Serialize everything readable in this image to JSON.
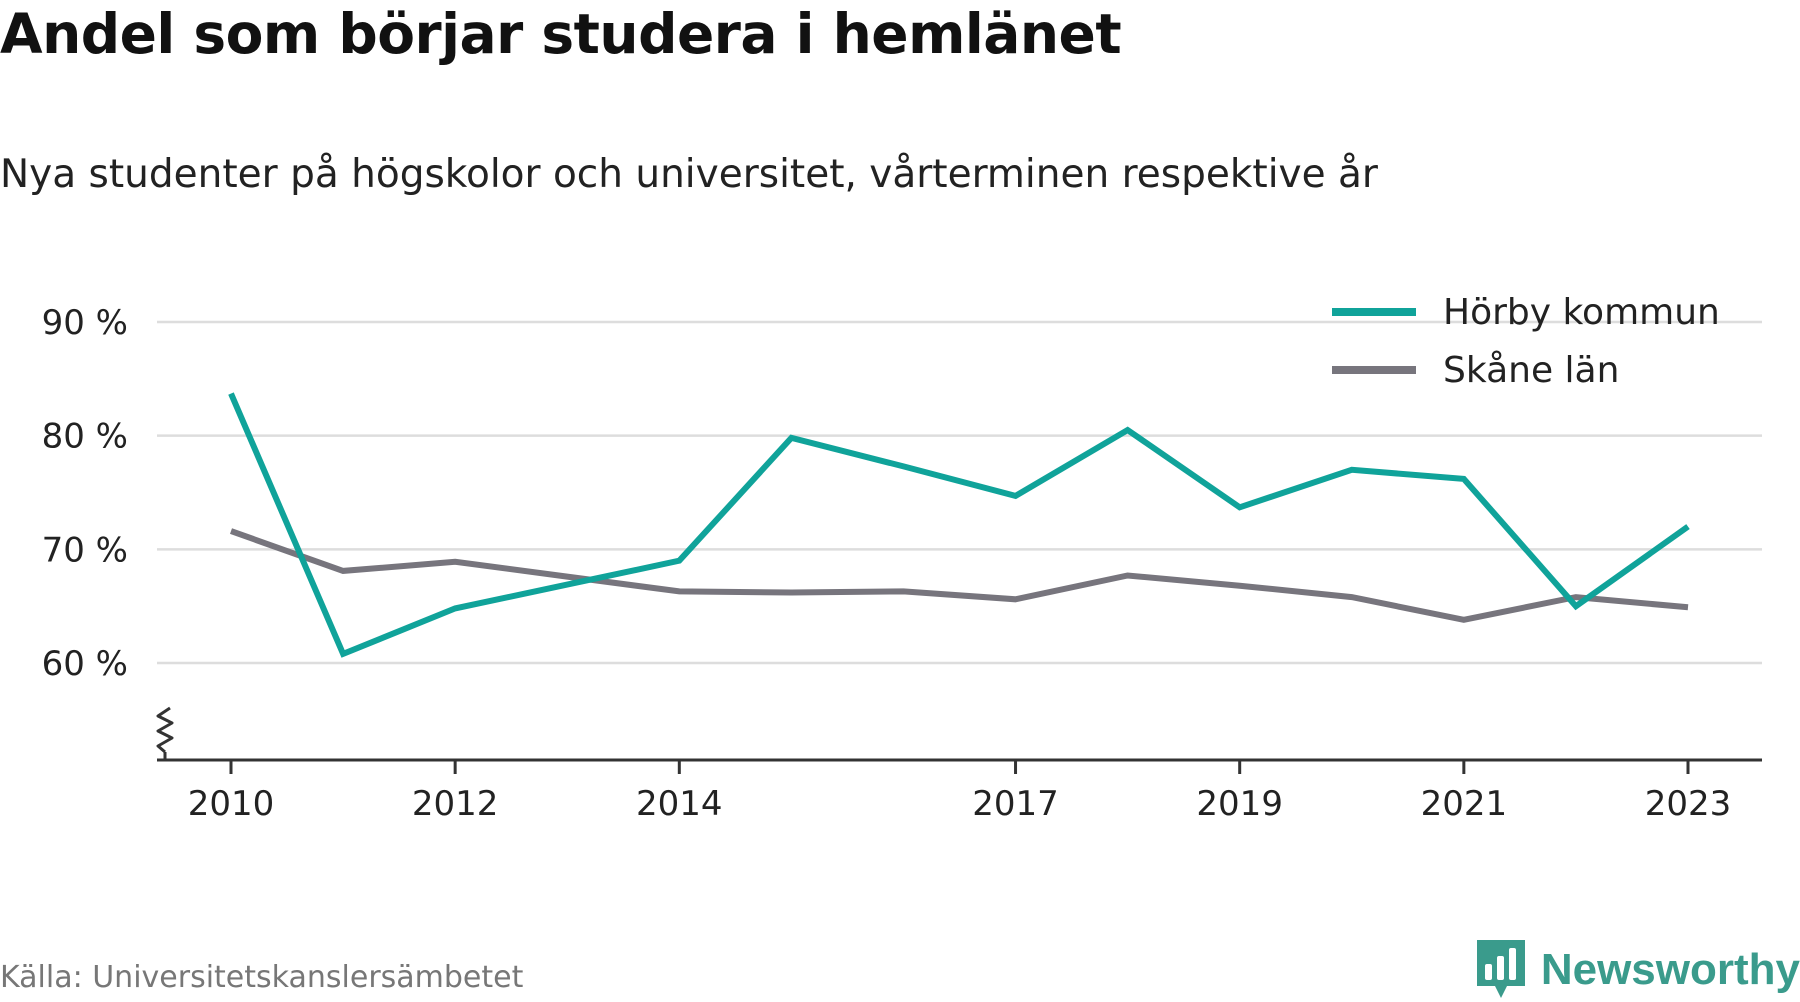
{
  "header": {
    "title": "Andel som börjar studera i hemlänet",
    "subtitle": "Nya studenter på högskolor och universitet, vårterminen respektive år"
  },
  "footer": {
    "source": "Källa: Universitetskanslersämbetet",
    "brand": "Newsworthy",
    "brand_icon": "bar-chart-speech-bubble-icon"
  },
  "colors": {
    "horby": "#10a39a",
    "skane": "#77757d",
    "grid": "#dddddd",
    "axis": "#333333",
    "brand": "#3a9b8c"
  },
  "chart_data": {
    "type": "line",
    "title": "Andel som börjar studera i hemlänet",
    "subtitle": "Nya studenter på högskolor och universitet, vårterminen respektive år",
    "xlabel": "",
    "ylabel": "",
    "x": [
      2010,
      2011,
      2012,
      2013,
      2014,
      2015,
      2016,
      2017,
      2018,
      2019,
      2020,
      2021,
      2022,
      2023
    ],
    "x_ticks": [
      "2010",
      "2012",
      "2014",
      "2017",
      "2019",
      "2021",
      "2023"
    ],
    "y_ticks": [
      "60 %",
      "70 %",
      "80 %",
      "90 %"
    ],
    "ylim": [
      51.5,
      92
    ],
    "y_axis_break": true,
    "grid": "horizontal",
    "legend_position": "top-right",
    "series": [
      {
        "name": "Hörby kommun",
        "color": "#10a39a",
        "values": [
          83.7,
          60.8,
          64.8,
          66.9,
          69.0,
          79.8,
          77.3,
          74.7,
          80.5,
          73.7,
          77.0,
          76.2,
          65.0,
          72.0
        ]
      },
      {
        "name": "Skåne län",
        "color": "#77757d",
        "values": [
          71.6,
          68.1,
          68.9,
          67.6,
          66.3,
          66.2,
          66.3,
          65.6,
          67.7,
          66.8,
          65.8,
          63.8,
          65.8,
          64.9
        ]
      }
    ]
  }
}
